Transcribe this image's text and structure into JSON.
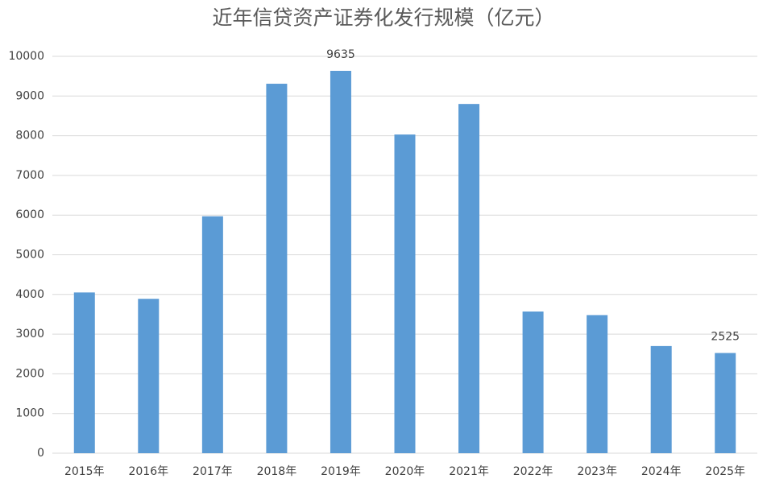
{
  "chart_data": {
    "type": "bar",
    "title": "近年信贷资产证券化发行规模（亿元）",
    "categories": [
      "2015年",
      "2016年",
      "2017年",
      "2018年",
      "2019年",
      "2020年",
      "2021年",
      "2022年",
      "2023年",
      "2024年",
      "2025年"
    ],
    "values": [
      4050,
      3890,
      5970,
      9310,
      9635,
      8030,
      8800,
      3570,
      3480,
      2700,
      2525
    ],
    "value_labels": [
      null,
      null,
      null,
      null,
      "9635",
      null,
      null,
      null,
      null,
      null,
      "2525"
    ],
    "color": "#5b9bd5",
    "ylim": [
      0,
      10000
    ],
    "yticks": [
      0,
      1000,
      2000,
      3000,
      4000,
      5000,
      6000,
      7000,
      8000,
      9000,
      10000
    ],
    "grid": true
  }
}
